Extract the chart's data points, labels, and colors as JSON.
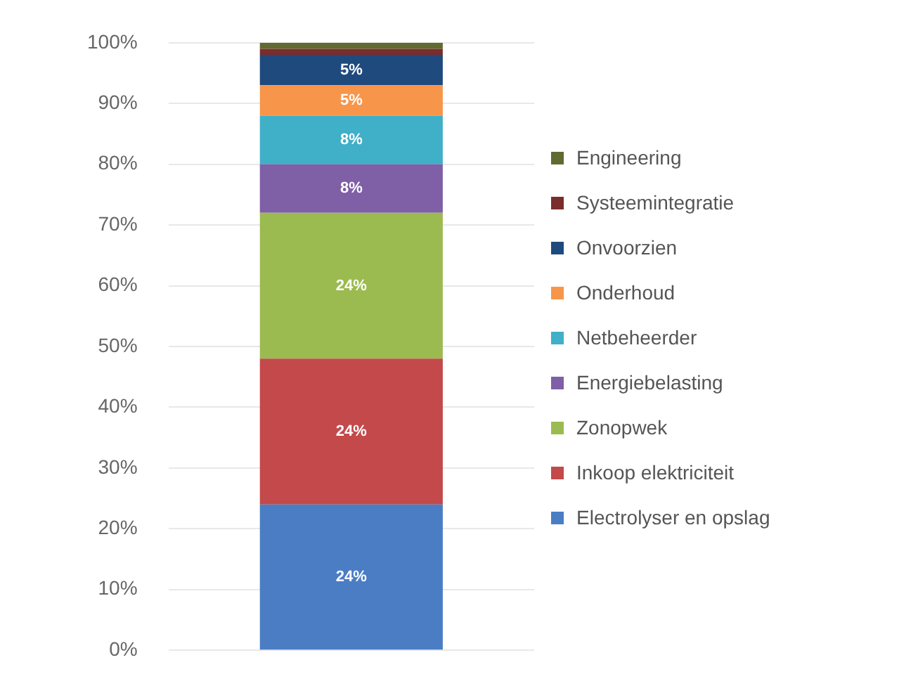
{
  "chart_data": {
    "type": "bar",
    "stacked": true,
    "categories": [
      null
    ],
    "series": [
      {
        "name": "Electrolyser en opslag",
        "color": "#4a7dc4",
        "values": [
          24
        ],
        "value_labels": [
          "24%"
        ]
      },
      {
        "name": "Inkoop elektriciteit",
        "color": "#c3494a",
        "values": [
          24
        ],
        "value_labels": [
          "24%"
        ]
      },
      {
        "name": "Zonopwek",
        "color": "#9bbb50",
        "values": [
          24
        ],
        "value_labels": [
          "24%"
        ]
      },
      {
        "name": "Energiebelasting",
        "color": "#7f5fa6",
        "values": [
          8
        ],
        "value_labels": [
          "8%"
        ]
      },
      {
        "name": "Netbeheerder",
        "color": "#40afc8",
        "values": [
          8
        ],
        "value_labels": [
          "8%"
        ]
      },
      {
        "name": "Onderhoud",
        "color": "#f7954a",
        "values": [
          5
        ],
        "value_labels": [
          "5%"
        ]
      },
      {
        "name": "Onvoorzien",
        "color": "#1f4a7e",
        "values": [
          5
        ],
        "value_labels": [
          "5%"
        ]
      },
      {
        "name": "Systeemintegratie",
        "color": "#7b2c2c",
        "values": [
          1
        ],
        "value_labels": [
          null
        ]
      },
      {
        "name": "Engineering",
        "color": "#5f6b30",
        "values": [
          1
        ],
        "value_labels": [
          null
        ]
      }
    ],
    "ylim": [
      0,
      100
    ],
    "yticks": [
      {
        "value": 0,
        "label": "0%"
      },
      {
        "value": 10,
        "label": "10%"
      },
      {
        "value": 20,
        "label": "20%"
      },
      {
        "value": 30,
        "label": "30%"
      },
      {
        "value": 40,
        "label": "40%"
      },
      {
        "value": 50,
        "label": "50%"
      },
      {
        "value": 60,
        "label": "60%"
      },
      {
        "value": 70,
        "label": "70%"
      },
      {
        "value": 80,
        "label": "80%"
      },
      {
        "value": 90,
        "label": "90%"
      },
      {
        "value": 100,
        "label": "100%"
      }
    ],
    "grid": "y",
    "legend": "right"
  }
}
